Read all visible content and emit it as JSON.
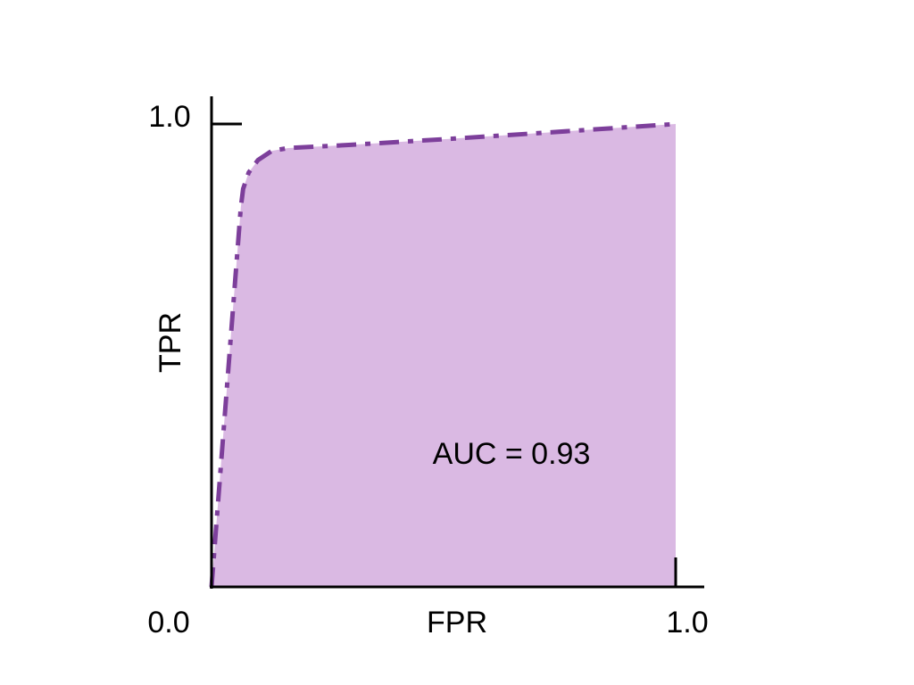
{
  "chart_data": {
    "type": "area",
    "title": "",
    "xlabel": "FPR",
    "ylabel": "TPR",
    "xlim": [
      0,
      1
    ],
    "ylim": [
      0,
      1
    ],
    "x_ticks": [
      "0.0",
      "1.0"
    ],
    "y_ticks": [
      "1.0"
    ],
    "origin_label": "0.0",
    "x_end_label": "1.0",
    "y_end_label": "1.0",
    "annotation": "AUC = 0.93",
    "grid": false,
    "line_style": "dash-dot",
    "colors": {
      "fill": "#dab9e3",
      "line": "#7d3f9b",
      "axis": "#000000"
    },
    "series": [
      {
        "x": [
          0,
          0.063,
          0.068,
          0.08,
          0.1,
          0.13,
          0.165,
          0.3,
          0.5,
          0.7,
          1.0
        ],
        "y": [
          0,
          0.82,
          0.86,
          0.895,
          0.922,
          0.942,
          0.948,
          0.955,
          0.967,
          0.98,
          1.0
        ]
      }
    ]
  }
}
